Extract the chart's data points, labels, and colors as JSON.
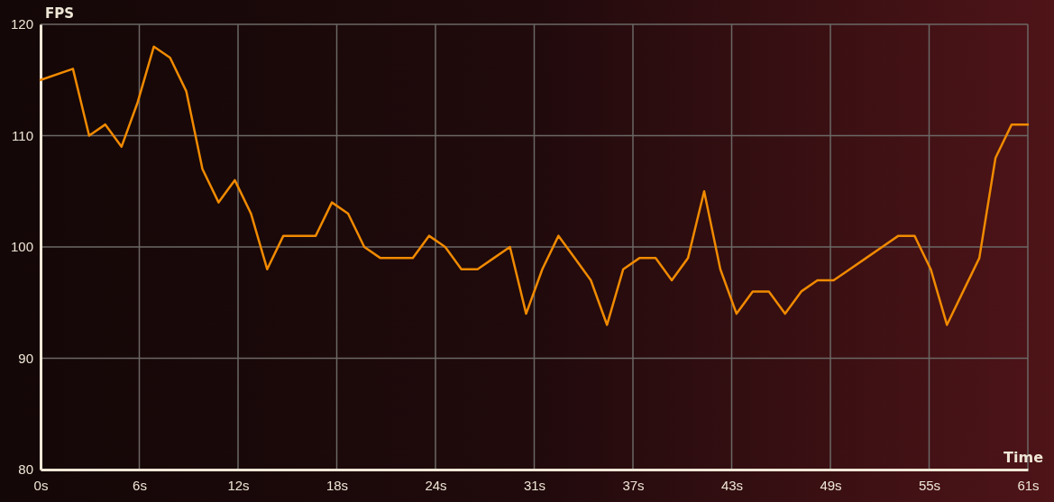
{
  "chart_data": {
    "type": "line",
    "xlabel": "Time",
    "ylabel": "FPS",
    "x": [
      0,
      2,
      3,
      4,
      5,
      6,
      7,
      8,
      9,
      10,
      11,
      12,
      13,
      14,
      15,
      16,
      17,
      18,
      19,
      20,
      21,
      22,
      23,
      24,
      25,
      26,
      27,
      28,
      29,
      30,
      31,
      32,
      33,
      34,
      35,
      36,
      37,
      38,
      39,
      40,
      41,
      42,
      43,
      44,
      45,
      46,
      47,
      48,
      49,
      50,
      51,
      52,
      53,
      54,
      55,
      56,
      57,
      58,
      59,
      60,
      61
    ],
    "series": [
      {
        "color": "#f08a00",
        "values": [
          115,
          116,
          110,
          111,
          109,
          113,
          118,
          117,
          114,
          107,
          104,
          106,
          103,
          98,
          101,
          101,
          101,
          104,
          103,
          100,
          99,
          99,
          99,
          101,
          100,
          98,
          98,
          99,
          100,
          94,
          98,
          101,
          99,
          97,
          93,
          98,
          99,
          99,
          97,
          99,
          105,
          98,
          94,
          96,
          96,
          94,
          96,
          97,
          97,
          98,
          99,
          100,
          101,
          101,
          98,
          93,
          96,
          99,
          108,
          111,
          111
        ]
      }
    ],
    "xlim": [
      0,
      61
    ],
    "xticks": [
      {
        "value": 0,
        "label": "0s"
      },
      {
        "value": 6.1,
        "label": "6s"
      },
      {
        "value": 12.2,
        "label": "12s"
      },
      {
        "value": 18.3,
        "label": "18s"
      },
      {
        "value": 24.4,
        "label": "24s"
      },
      {
        "value": 30.5,
        "label": "31s"
      },
      {
        "value": 36.6,
        "label": "37s"
      },
      {
        "value": 42.7,
        "label": "43s"
      },
      {
        "value": 48.8,
        "label": "49s"
      },
      {
        "value": 54.9,
        "label": "55s"
      },
      {
        "value": 61,
        "label": "61s"
      }
    ],
    "ylim": [
      80,
      120
    ],
    "yticks": [
      80,
      90,
      100,
      110,
      120
    ],
    "grid": true,
    "marker": "none",
    "line_style": "solid"
  }
}
